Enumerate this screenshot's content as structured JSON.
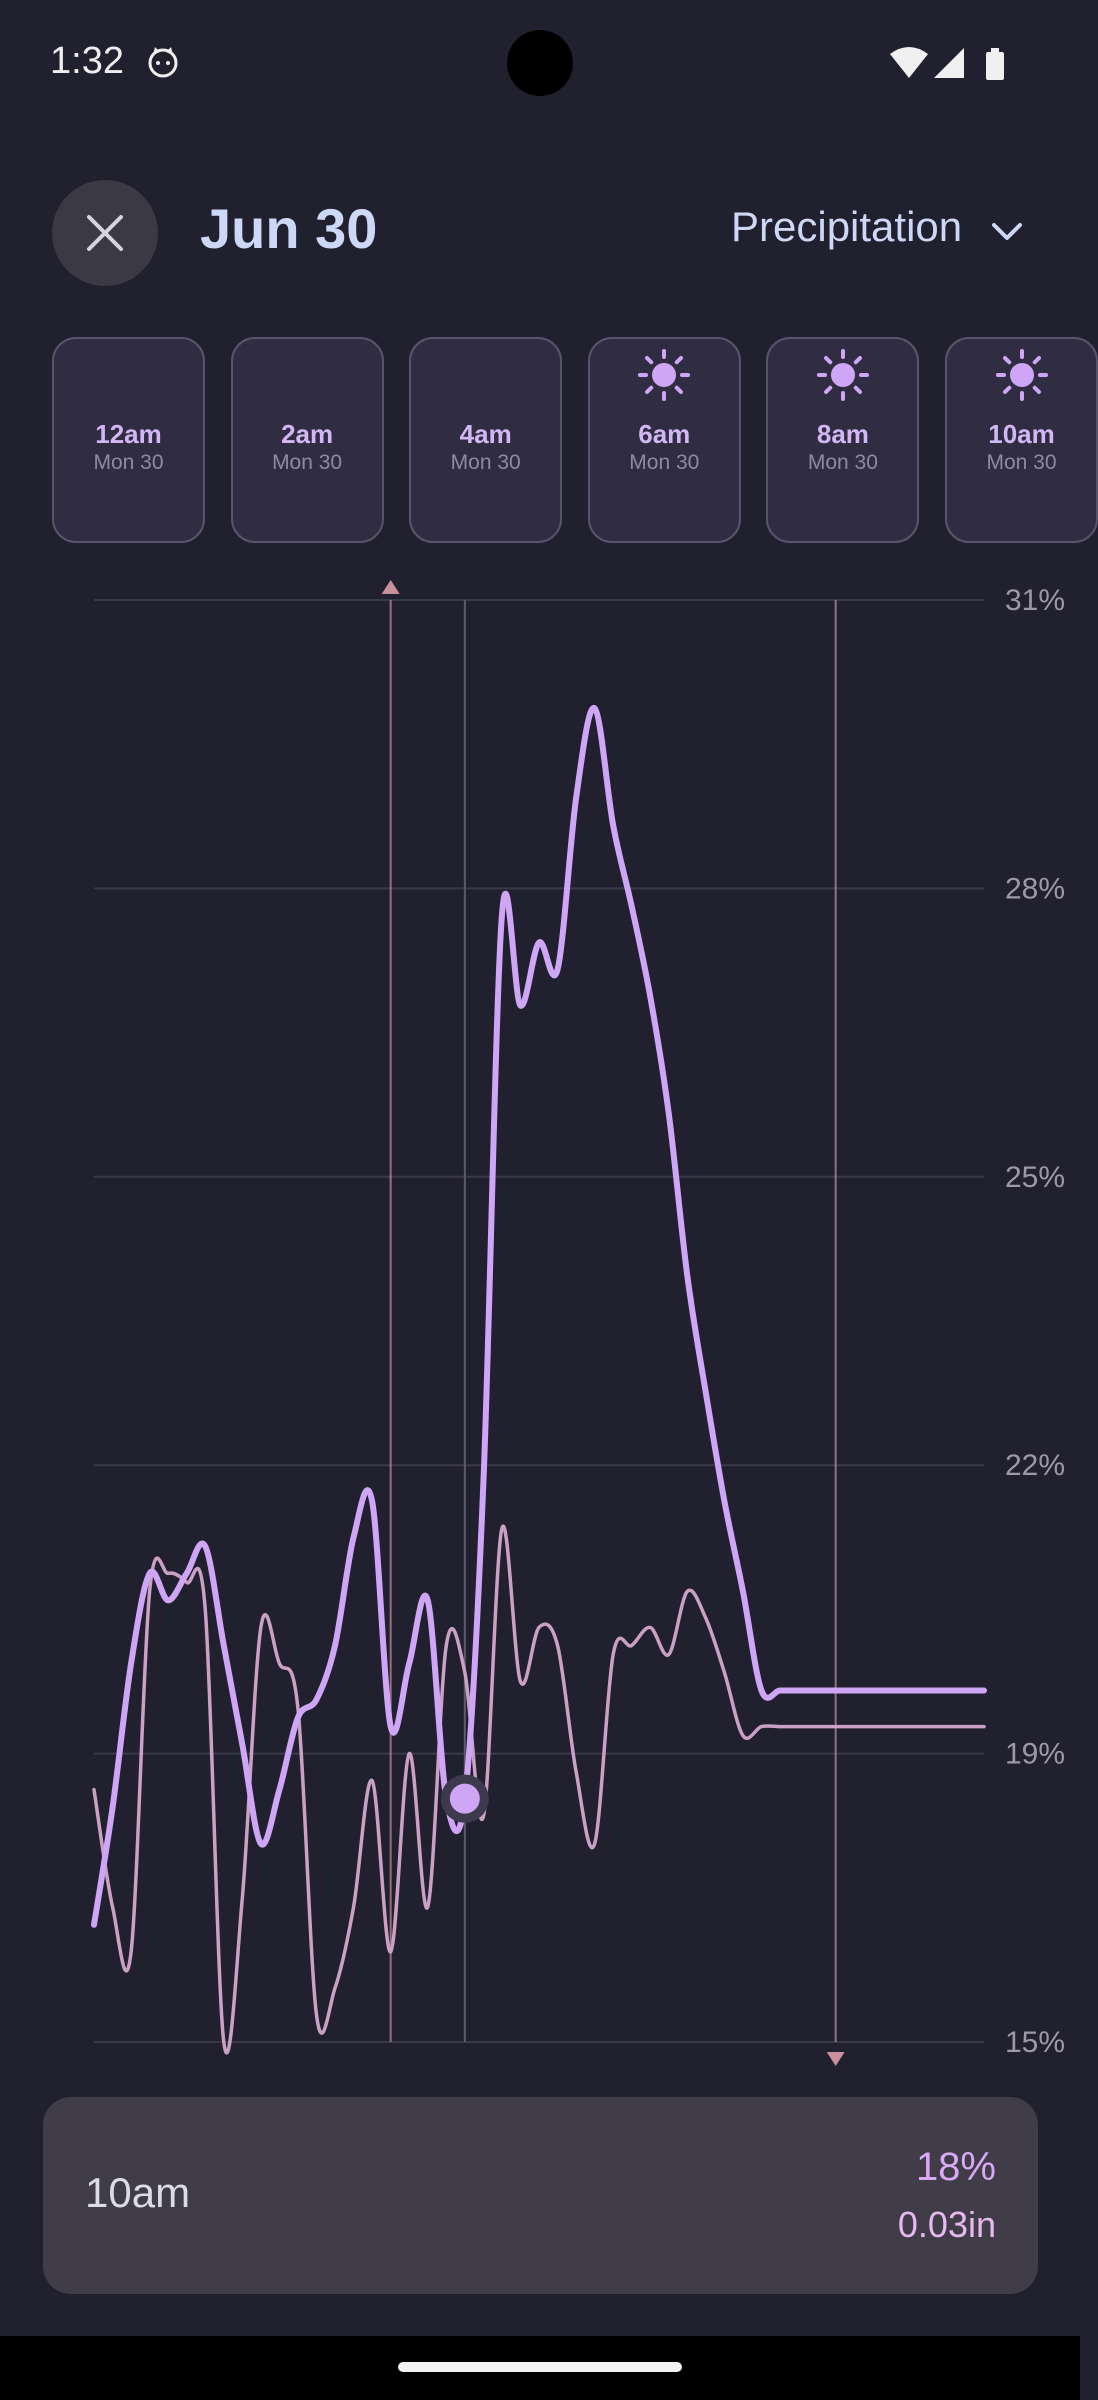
{
  "status_bar": {
    "time": "1:32",
    "icons": [
      "cat-icon",
      "wifi-icon",
      "signal-icon",
      "battery-icon"
    ]
  },
  "header": {
    "title": "Jun 30",
    "metric": "Precipitation",
    "close_icon": "close-icon",
    "dropdown_icon": "chevron-down-icon"
  },
  "hours": [
    {
      "time": "12am",
      "day": "Mon 30",
      "icon": "moon-icon"
    },
    {
      "time": "2am",
      "day": "Mon 30",
      "icon": "moon-icon"
    },
    {
      "time": "4am",
      "day": "Mon 30",
      "icon": "moon-icon"
    },
    {
      "time": "6am",
      "day": "Mon 30",
      "icon": "sun-icon"
    },
    {
      "time": "8am",
      "day": "Mon 30",
      "icon": "sun-icon"
    },
    {
      "time": "10am",
      "day": "Mon 30",
      "icon": "sun-icon"
    }
  ],
  "colors": {
    "accent": "#cfa6f5",
    "secondary": "#caa0c4",
    "background": "#21202f",
    "marker": "#c9909c"
  },
  "chart_data": {
    "type": "line",
    "y_ticks": [
      "31%",
      "28%",
      "25%",
      "22%",
      "19%",
      "15%"
    ],
    "ylim": [
      15,
      31
    ],
    "x_range": [
      0,
      24
    ],
    "x_unit": "hours",
    "grid": true,
    "series": [
      {
        "color": "#cfa6f5",
        "x": [
          0,
          0.5,
          1,
          1.5,
          2,
          2.5,
          3,
          3.5,
          4,
          4.5,
          5,
          5.5,
          6,
          6.5,
          7,
          7.5,
          8,
          8.5,
          9,
          9.5,
          10,
          10.5,
          11,
          11.5,
          12,
          12.5,
          13,
          13.5,
          14,
          14.5,
          15,
          15.5,
          16,
          16.5,
          17,
          17.5,
          18,
          18.5,
          19,
          19.5,
          20,
          20.5,
          21,
          21.5,
          22,
          22.5,
          23,
          23.5,
          24
        ],
        "values": [
          16.3,
          17.6,
          19.2,
          20.2,
          19.9,
          20.2,
          20.5,
          19.4,
          18.3,
          17.2,
          17.8,
          18.6,
          18.8,
          19.4,
          20.6,
          21.0,
          18.5,
          19.2,
          19.9,
          17.7,
          17.7,
          21.2,
          27.5,
          26.5,
          27.2,
          26.9,
          28.8,
          29.8,
          28.5,
          27.6,
          26.6,
          25.3,
          23.5,
          22.2,
          21.0,
          20.0,
          18.9,
          18.9,
          18.9,
          18.9,
          18.9,
          18.9,
          18.9,
          18.9,
          18.9,
          18.9,
          18.9,
          18.9,
          18.9
        ]
      },
      {
        "color": "#caa0c4",
        "x": [
          0,
          0.5,
          1,
          1.5,
          2,
          2.5,
          3,
          3.5,
          4,
          4.5,
          5,
          5.5,
          6,
          6.5,
          7,
          7.5,
          8,
          8.5,
          9,
          9.5,
          10,
          10.5,
          11,
          11.5,
          12,
          12.5,
          13,
          13.5,
          14,
          14.5,
          15,
          15.5,
          16,
          16.5,
          17,
          17.5,
          18,
          18.5,
          19,
          19.5,
          20,
          20.5,
          21,
          21.5,
          22,
          22.5,
          23,
          23.5,
          24
        ],
        "values": [
          17.8,
          16.5,
          16.0,
          20.0,
          20.2,
          20.1,
          19.8,
          15.0,
          16.6,
          19.6,
          19.2,
          18.7,
          15.3,
          15.6,
          16.5,
          17.9,
          16.0,
          18.2,
          16.5,
          19.4,
          19.1,
          17.5,
          20.7,
          19.0,
          19.6,
          19.4,
          18.0,
          17.2,
          19.3,
          19.4,
          19.6,
          19.3,
          20.0,
          19.7,
          19.1,
          18.4,
          18.5,
          18.5,
          18.5,
          18.5,
          18.5,
          18.5,
          18.5,
          18.5,
          18.5,
          18.5,
          18.5,
          18.5,
          18.5
        ]
      }
    ],
    "selected_x": 10,
    "range_markers_x": [
      8,
      20
    ]
  },
  "readout": {
    "time": "10am",
    "percent": "18%",
    "amount": "0.03in"
  }
}
